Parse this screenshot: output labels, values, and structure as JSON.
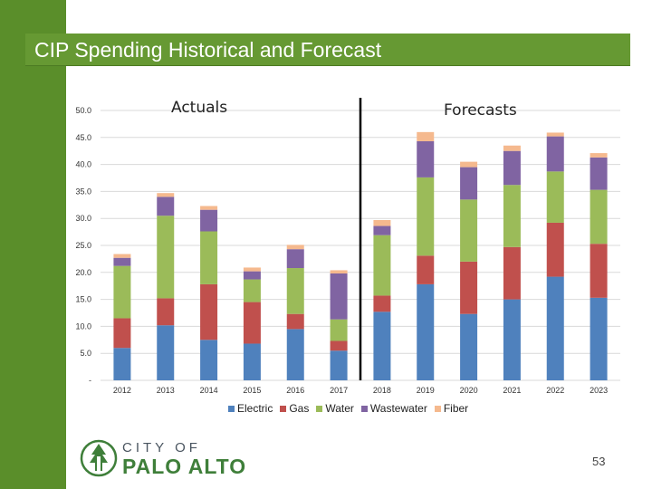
{
  "slide": {
    "title": "CIP Spending Historical and Forecast",
    "page_number": "53"
  },
  "logo": {
    "line1": "CITY OF",
    "line2": "PALO ALTO",
    "icon": "tree-icon"
  },
  "colors": {
    "title_bar": "#669933",
    "left_strip": "#5a8e2a",
    "Electric": "#4f81bd",
    "Gas": "#c0504d",
    "Water": "#9bbb59",
    "Wastewater": "#8064a2",
    "Fiber": "#f5b98e"
  },
  "chart_data": {
    "type": "bar",
    "stacked": true,
    "categories": [
      "2012",
      "2013",
      "2014",
      "2015",
      "2016",
      "2017",
      "2018",
      "2019",
      "2020",
      "2021",
      "2022",
      "2023"
    ],
    "series": [
      {
        "name": "Electric",
        "values": [
          6.0,
          10.2,
          7.5,
          6.8,
          9.5,
          5.5,
          12.7,
          17.8,
          12.3,
          15.0,
          19.2,
          15.3
        ]
      },
      {
        "name": "Gas",
        "values": [
          5.5,
          5.0,
          10.3,
          7.7,
          2.8,
          1.8,
          3.0,
          5.3,
          9.7,
          9.7,
          10.0,
          10.0
        ]
      },
      {
        "name": "Water",
        "values": [
          9.7,
          15.3,
          9.8,
          4.2,
          8.5,
          4.0,
          11.2,
          14.5,
          11.5,
          11.5,
          9.5,
          10.0
        ]
      },
      {
        "name": "Wastewater",
        "values": [
          1.5,
          3.5,
          4.0,
          1.5,
          3.5,
          8.5,
          1.7,
          6.7,
          6.0,
          6.3,
          6.5,
          6.0
        ]
      },
      {
        "name": "Fiber",
        "values": [
          0.7,
          0.7,
          0.7,
          0.7,
          0.8,
          0.6,
          1.1,
          1.7,
          1.0,
          1.0,
          0.7,
          0.8
        ]
      }
    ],
    "ylim": [
      0,
      50
    ],
    "yticks": [
      "-",
      "5.0",
      "10.0",
      "15.0",
      "20.0",
      "25.0",
      "30.0",
      "35.0",
      "40.0",
      "45.0",
      "50.0"
    ],
    "grid": true,
    "legend_position": "bottom",
    "annotations": [
      "Actuals",
      "Forecasts"
    ],
    "divider_between": [
      "2017",
      "2018"
    ]
  }
}
